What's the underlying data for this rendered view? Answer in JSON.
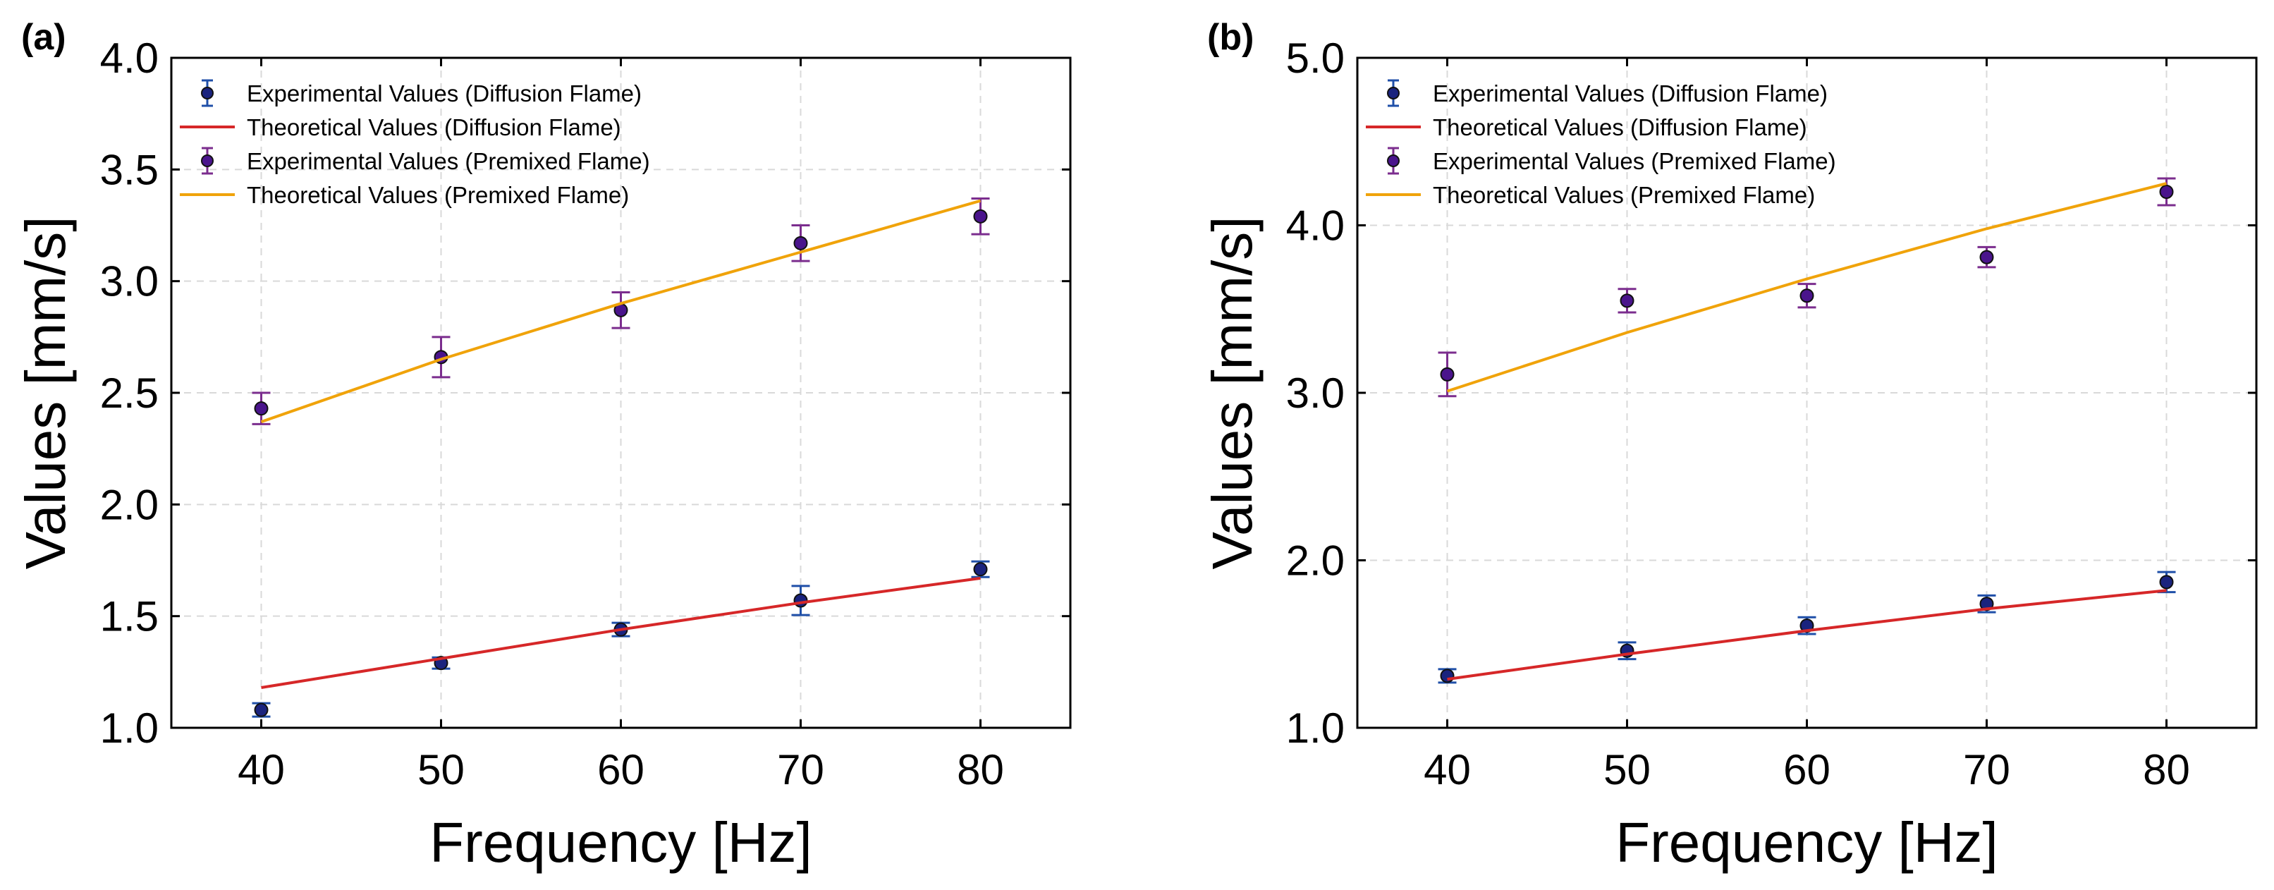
{
  "chart_data": [
    {
      "type": "scatter",
      "panel_label": "(a)",
      "xlabel": "Frequency [Hz]",
      "ylabel": "Values [mm/s]",
      "xlim": [
        35,
        85
      ],
      "ylim": [
        1.0,
        4.0
      ],
      "x_ticks": [
        40,
        50,
        60,
        70,
        80
      ],
      "y_ticks": [
        1.0,
        1.5,
        2.0,
        2.5,
        3.0,
        3.5,
        4.0
      ],
      "y_tick_labels": [
        "1.0",
        "1.5",
        "2.0",
        "2.5",
        "3.0",
        "3.5",
        "4.0"
      ],
      "x": [
        40,
        50,
        60,
        70,
        80
      ],
      "grid": true,
      "legend_position": "top-left",
      "series": [
        {
          "name": "Experimental Values (Diffusion Flame)",
          "kind": "errorbar",
          "color": "#1f4fa8",
          "fill": "#1a237e",
          "values": [
            1.08,
            1.29,
            1.44,
            1.57,
            1.71
          ],
          "errors": [
            0.03,
            0.025,
            0.03,
            0.065,
            0.035
          ]
        },
        {
          "name": "Theoretical Values (Diffusion Flame)",
          "kind": "line",
          "color": "#d62728",
          "values": [
            1.18,
            1.31,
            1.44,
            1.56,
            1.67
          ]
        },
        {
          "name": "Experimental Values (Premixed Flame)",
          "kind": "errorbar",
          "color": "#7b2d8e",
          "fill": "#4a148c",
          "values": [
            2.43,
            2.66,
            2.87,
            3.17,
            3.29
          ],
          "errors": [
            0.07,
            0.09,
            0.08,
            0.08,
            0.08
          ]
        },
        {
          "name": "Theoretical Values (Premixed Flame)",
          "kind": "line",
          "color": "#f0a30a",
          "values": [
            2.37,
            2.65,
            2.9,
            3.13,
            3.36
          ]
        }
      ]
    },
    {
      "type": "scatter",
      "panel_label": "(b)",
      "xlabel": "Frequency [Hz]",
      "ylabel": "Values [mm/s]",
      "xlim": [
        35,
        85
      ],
      "ylim": [
        1.0,
        5.0
      ],
      "x_ticks": [
        40,
        50,
        60,
        70,
        80
      ],
      "y_ticks": [
        1.0,
        2.0,
        3.0,
        4.0,
        5.0
      ],
      "y_tick_labels": [
        "1.0",
        "2.0",
        "3.0",
        "4.0",
        "5.0"
      ],
      "x": [
        40,
        50,
        60,
        70,
        80
      ],
      "grid": true,
      "legend_position": "top-left",
      "series": [
        {
          "name": "Experimental Values (Diffusion Flame)",
          "kind": "errorbar",
          "color": "#1f4fa8",
          "fill": "#1a237e",
          "values": [
            1.31,
            1.46,
            1.61,
            1.74,
            1.87
          ],
          "errors": [
            0.04,
            0.05,
            0.05,
            0.05,
            0.06
          ]
        },
        {
          "name": "Theoretical Values (Diffusion Flame)",
          "kind": "line",
          "color": "#d62728",
          "values": [
            1.29,
            1.44,
            1.58,
            1.71,
            1.82
          ]
        },
        {
          "name": "Experimental Values (Premixed Flame)",
          "kind": "errorbar",
          "color": "#7b2d8e",
          "fill": "#4a148c",
          "values": [
            3.11,
            3.55,
            3.58,
            3.81,
            4.2
          ],
          "errors": [
            0.13,
            0.07,
            0.07,
            0.06,
            0.08
          ]
        },
        {
          "name": "Theoretical Values (Premixed Flame)",
          "kind": "line",
          "color": "#f0a30a",
          "values": [
            3.01,
            3.36,
            3.68,
            3.98,
            4.25
          ]
        }
      ]
    }
  ]
}
